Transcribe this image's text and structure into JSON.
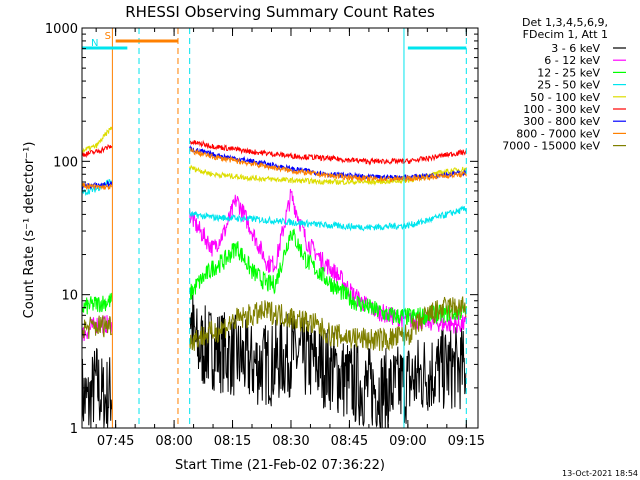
{
  "chart_data": {
    "type": "line",
    "title": "RHESSI Observing Summary Count Rates",
    "xlabel": "Start Time (21-Feb-02 07:36:22)",
    "ylabel": "Count Rate (s⁻¹ detector⁻¹)",
    "y_scale": "log",
    "ylim": [
      1,
      1000
    ],
    "xlim": [
      "07:36:22",
      "09:18:00"
    ],
    "x_ticks": [
      "07:45",
      "08:00",
      "08:15",
      "08:30",
      "08:45",
      "09:00",
      "09:15"
    ],
    "y_ticks": [
      "1",
      "10",
      "100",
      "1000"
    ],
    "legend_position": "right",
    "legend_header": [
      "Det 1,3,4,5,6,9,",
      "FDecim 1, Att 1"
    ],
    "timestamp": "13-Oct-2021 18:54",
    "markers": [
      {
        "label": "S",
        "start": "07:45:00",
        "end": "08:01:00",
        "color": "#ff8000"
      },
      {
        "label": "N",
        "start": "07:36:22",
        "end": "07:48:00",
        "color": "#00e5ee"
      },
      {
        "label": "",
        "start": "09:00:00",
        "end": "09:15:00",
        "color": "#00e5ee"
      }
    ],
    "vlines": [
      {
        "time": "07:44:10",
        "color": "#ff8000",
        "style": "solid"
      },
      {
        "time": "07:51:00",
        "color": "#00e5ee",
        "style": "dashed"
      },
      {
        "time": "08:01:00",
        "color": "#ff8000",
        "style": "dashed"
      },
      {
        "time": "08:04:00",
        "color": "#00e5ee",
        "style": "dashed"
      },
      {
        "time": "08:59:00",
        "color": "#00e5ee",
        "style": "solid"
      },
      {
        "time": "09:15:00",
        "color": "#00e5ee",
        "style": "dashed"
      }
    ],
    "series": [
      {
        "name": "3 - 6 keV",
        "color": "#000000",
        "segments": [
          {
            "x": [
              "07:36:22",
              "07:38:00",
              "07:40:00",
              "07:42:00",
              "07:44:00"
            ],
            "y": [
              1.8,
              1.5,
              2.2,
              1.6,
              1.9
            ]
          },
          {
            "x": [
              "08:04:00",
              "08:05:00",
              "08:06:00",
              "08:10:00",
              "08:15:00",
              "08:20:00",
              "08:25:00",
              "08:30:00",
              "08:35:00",
              "08:40:00",
              "08:45:00",
              "08:50:00",
              "08:55:00",
              "09:00:00",
              "09:05:00",
              "09:10:00",
              "09:15:00"
            ],
            "y": [
              8,
              5,
              4,
              4,
              3.5,
              3,
              3,
              3.6,
              3.2,
              2.8,
              2.2,
              2,
              1.9,
              2.2,
              2.6,
              2.8,
              2.8
            ]
          }
        ]
      },
      {
        "name": "6 - 12 keV",
        "color": "#ff00ff",
        "segments": [
          {
            "x": [
              "07:36:22",
              "07:40:00",
              "07:44:00"
            ],
            "y": [
              5,
              6,
              6
            ]
          },
          {
            "x": [
              "08:04:00",
              "08:06:00",
              "08:10:00",
              "08:13:00",
              "08:16:00",
              "08:20:00",
              "08:24:00",
              "08:26:00",
              "08:30:00",
              "08:34:00",
              "08:38:00",
              "08:42:00",
              "08:46:00",
              "08:50:00",
              "08:55:00",
              "09:00:00",
              "09:05:00",
              "09:10:00",
              "09:15:00"
            ],
            "y": [
              40,
              32,
              22,
              30,
              52,
              30,
              17,
              17,
              56,
              25,
              18,
              14,
              10,
              8,
              7,
              6.5,
              6.3,
              6,
              6
            ]
          }
        ]
      },
      {
        "name": "12 - 25 keV",
        "color": "#00ff00",
        "segments": [
          {
            "x": [
              "07:36:22",
              "07:40:00",
              "07:44:00"
            ],
            "y": [
              8,
              8.5,
              9
            ]
          },
          {
            "x": [
              "08:04:00",
              "08:06:00",
              "08:10:00",
              "08:13:00",
              "08:16:00",
              "08:20:00",
              "08:24:00",
              "08:26:00",
              "08:30:00",
              "08:34:00",
              "08:38:00",
              "08:42:00",
              "08:46:00",
              "08:50:00",
              "08:55:00",
              "09:00:00",
              "09:05:00",
              "09:10:00",
              "09:15:00"
            ],
            "y": [
              10,
              12,
              16,
              18,
              23,
              15,
              12,
              12,
              30,
              18,
              14,
              11,
              9,
              8,
              7,
              6.8,
              7,
              7.2,
              7.5
            ]
          }
        ]
      },
      {
        "name": "25 - 50 keV",
        "color": "#00e5ee",
        "segments": [
          {
            "x": [
              "07:36:22",
              "07:40:00",
              "07:44:00"
            ],
            "y": [
              58,
              62,
              72
            ]
          },
          {
            "x": [
              "08:04:00",
              "08:10:00",
              "08:20:00",
              "08:30:00",
              "08:40:00",
              "08:50:00",
              "09:00:00",
              "09:05:00",
              "09:10:00",
              "09:15:00"
            ],
            "y": [
              40,
              38,
              37,
              35,
              33,
              32,
              33,
              36,
              40,
              44
            ]
          }
        ]
      },
      {
        "name": "50 - 100 keV",
        "color": "#dddd00",
        "segments": [
          {
            "x": [
              "07:36:22",
              "07:40:00",
              "07:44:00"
            ],
            "y": [
              120,
              130,
              180
            ]
          },
          {
            "x": [
              "08:04:00",
              "08:10:00",
              "08:20:00",
              "08:30:00",
              "08:40:00",
              "08:50:00",
              "09:00:00",
              "09:05:00",
              "09:10:00",
              "09:15:00"
            ],
            "y": [
              90,
              80,
              75,
              72,
              70,
              70,
              72,
              78,
              84,
              88
            ]
          }
        ]
      },
      {
        "name": "100 - 300 keV",
        "color": "#ff0000",
        "segments": [
          {
            "x": [
              "07:36:22",
              "07:40:00",
              "07:44:00"
            ],
            "y": [
              112,
              118,
              130
            ]
          },
          {
            "x": [
              "08:04:00",
              "08:10:00",
              "08:20:00",
              "08:30:00",
              "08:40:00",
              "08:50:00",
              "09:00:00",
              "09:05:00",
              "09:10:00",
              "09:15:00"
            ],
            "y": [
              140,
              130,
              118,
              110,
              105,
              100,
              100,
              105,
              112,
              118
            ]
          }
        ]
      },
      {
        "name": "300 - 800 keV",
        "color": "#0000ff",
        "segments": [
          {
            "x": [
              "07:36:22",
              "07:40:00",
              "07:44:00"
            ],
            "y": [
              65,
              66,
              68
            ]
          },
          {
            "x": [
              "08:04:00",
              "08:10:00",
              "08:20:00",
              "08:30:00",
              "08:40:00",
              "08:50:00",
              "09:00:00",
              "09:05:00",
              "09:10:00",
              "09:15:00"
            ],
            "y": [
              125,
              112,
              100,
              88,
              80,
              76,
              76,
              78,
              80,
              82
            ]
          }
        ]
      },
      {
        "name": "800 - 7000 keV",
        "color": "#ff8000",
        "segments": [
          {
            "x": [
              "07:36:22",
              "07:40:00",
              "07:44:00"
            ],
            "y": [
              66,
              64,
              64
            ]
          },
          {
            "x": [
              "08:04:00",
              "08:10:00",
              "08:20:00",
              "08:30:00",
              "08:40:00",
              "08:50:00",
              "09:00:00",
              "09:05:00",
              "09:10:00",
              "09:15:00"
            ],
            "y": [
              120,
              108,
              96,
              85,
              78,
              74,
              74,
              76,
              78,
              80
            ]
          }
        ]
      },
      {
        "name": "7000 - 15000 keV",
        "color": "#808000",
        "segments": [
          {
            "x": [
              "07:36:22",
              "07:40:00",
              "07:44:00"
            ],
            "y": [
              5.5,
              5.8,
              6
            ]
          },
          {
            "x": [
              "08:04:00",
              "08:08:00",
              "08:12:00",
              "08:16:00",
              "08:20:00",
              "08:24:00",
              "08:28:00",
              "08:32:00",
              "08:36:00",
              "08:40:00",
              "08:45:00",
              "08:50:00",
              "08:55:00",
              "09:00:00",
              "09:05:00",
              "09:10:00",
              "09:15:00"
            ],
            "y": [
              4.5,
              5,
              5.5,
              6.5,
              7,
              7.5,
              7,
              6.5,
              6,
              5,
              4.8,
              4.6,
              4.6,
              5,
              7,
              8,
              8
            ]
          }
        ]
      }
    ]
  }
}
